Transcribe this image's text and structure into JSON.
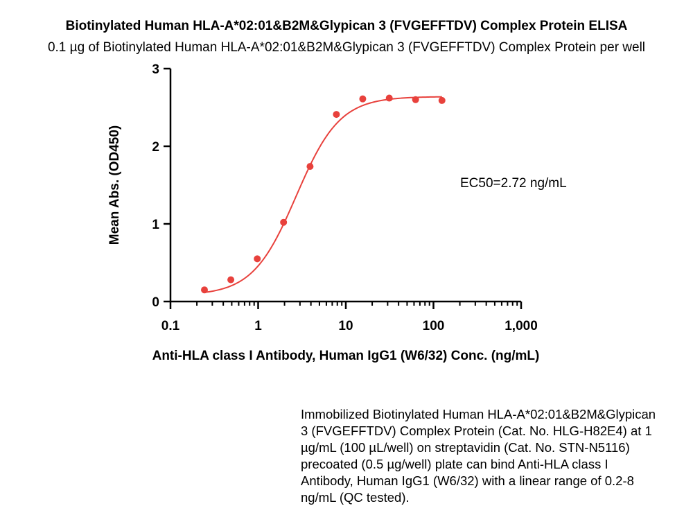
{
  "title": "Biotinylated Human HLA-A*02:01&B2M&Glypican 3 (FVGEFFTDV) Complex Protein ELISA",
  "subtitle": "0.1 µg of Biotinylated Human HLA-A*02:01&B2M&Glypican 3 (FVGEFFTDV) Complex Protein per well",
  "caption": "Immobilized Biotinylated Human HLA-A*02:01&B2M&Glypican 3 (FVGEFFTDV) Complex Protein (Cat. No. HLG-H82E4) at 1 µg/mL (100 µL/well) on streptavidin (Cat. No. STN-N5116) precoated (0.5 µg/well) plate can bind Anti-HLA class I Antibody, Human IgG1 (W6/32) with a linear range of 0.2-8 ng/mL (QC tested).",
  "chart_data": {
    "type": "scatter",
    "xlabel": "Anti-HLA class I Antibody, Human IgG1 (W6/32) Conc. (ng/mL)",
    "ylabel": "Mean Abs. (OD450)",
    "xscale": "log",
    "xlim": [
      0.1,
      1000
    ],
    "ylim": [
      0,
      3
    ],
    "xticks": [
      0.1,
      1,
      10,
      100,
      1000
    ],
    "xtick_labels": [
      "0.1",
      "1",
      "10",
      "100",
      "1,000"
    ],
    "yticks": [
      0,
      1,
      2,
      3
    ],
    "ytick_labels": [
      "0",
      "1",
      "2",
      "3"
    ],
    "annotation": "EC50=2.72 ng/mL",
    "grid": false,
    "color": "#e8413c",
    "points": {
      "x": [
        0.244,
        0.488,
        0.977,
        1.95,
        3.91,
        7.81,
        15.6,
        31.3,
        62.5,
        125
      ],
      "y": [
        0.15,
        0.28,
        0.55,
        1.02,
        1.74,
        2.41,
        2.61,
        2.62,
        2.6,
        2.59
      ]
    },
    "fit": {
      "model": "4PL",
      "bottom": 0.08,
      "top": 2.64,
      "ec50": 2.72,
      "hill": 1.75
    }
  }
}
